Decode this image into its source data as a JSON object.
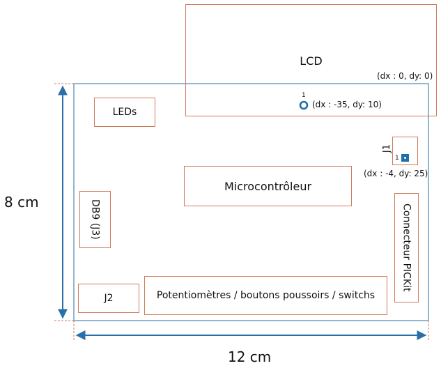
{
  "board": {
    "width_label": "12 cm",
    "height_label": "8 cm"
  },
  "components": {
    "lcd": "LCD",
    "leds": "LEDs",
    "microcontroller": "Microcontrôleur",
    "db9": "DB9 (J3)",
    "j2": "J2",
    "pots": "Potentiomètres / boutons poussoirs / switchs",
    "pickit": "Connecteur PICKit",
    "j1": "J1"
  },
  "annotations": {
    "lcd_offset": "(dx : 0, dy: 0)",
    "pin1_lcd": "1",
    "lcd_pin_offset": "(dx : -35, dy: 10)",
    "pin1_j1": "1",
    "j1_offset": "(dx : -4, dy: 25)"
  },
  "colors": {
    "board_outline": "#5b8fb6",
    "component_outline": "#d07a5c",
    "dimension_arrow": "#2a6fa8",
    "pin": "#1f6fa8"
  }
}
